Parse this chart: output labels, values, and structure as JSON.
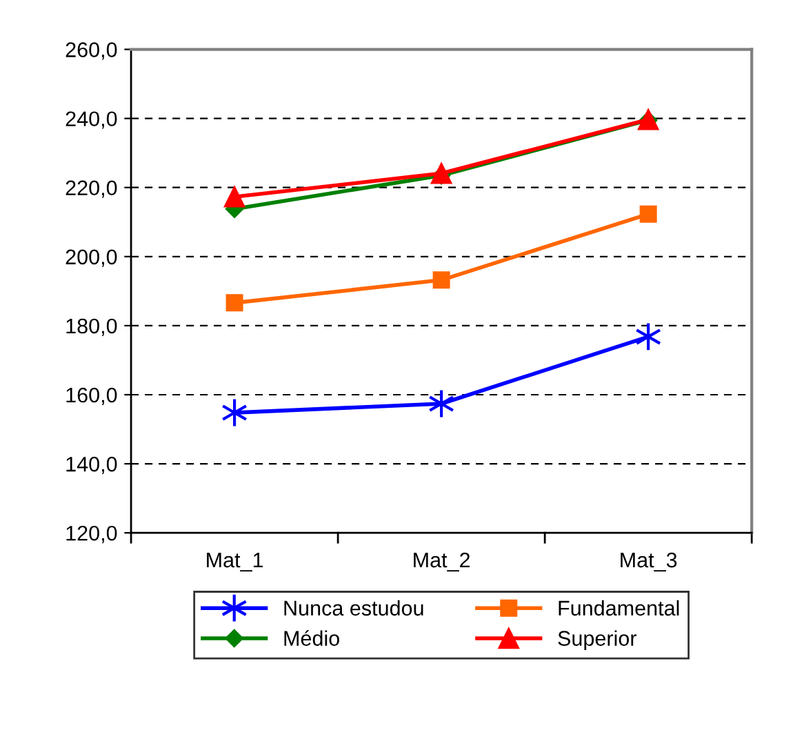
{
  "chart_data": {
    "type": "line",
    "categories": [
      "Mat_1",
      "Mat_2",
      "Mat_3"
    ],
    "series": [
      {
        "name": "Nunca estudou",
        "color": "#0000ff",
        "marker": "cross",
        "values": [
          154.8,
          157.4,
          176.8
        ]
      },
      {
        "name": "Fundamental",
        "color": "#ff6600",
        "marker": "square",
        "values": [
          186.6,
          193.2,
          212.3
        ]
      },
      {
        "name": "Médio",
        "color": "#008000",
        "marker": "diamond",
        "values": [
          213.8,
          223.5,
          239.5
        ]
      },
      {
        "name": "Superior",
        "color": "#ff0000",
        "marker": "triangle",
        "values": [
          217.3,
          224.1,
          239.7
        ]
      }
    ],
    "ylim": [
      120,
      260
    ],
    "yticks": [
      {
        "value": 120,
        "label": "120,0"
      },
      {
        "value": 140,
        "label": "140,0"
      },
      {
        "value": 160,
        "label": "160,0"
      },
      {
        "value": 180,
        "label": "180,0"
      },
      {
        "value": 200,
        "label": "200,0"
      },
      {
        "value": 220,
        "label": "220,0"
      },
      {
        "value": 240,
        "label": "240,0"
      },
      {
        "value": 260,
        "label": "260,0"
      }
    ],
    "grid": "y",
    "legend": "bottom",
    "line_style": "solid"
  }
}
